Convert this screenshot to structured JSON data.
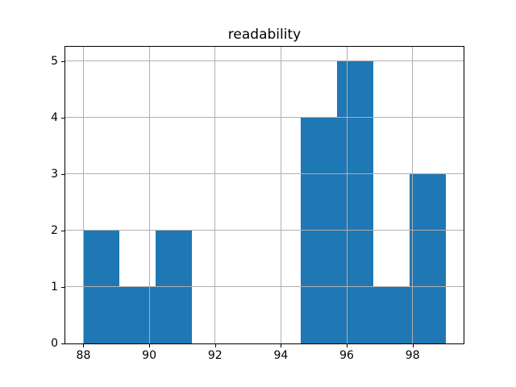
{
  "chart_data": {
    "type": "bar",
    "subtype": "histogram",
    "title": "readability",
    "bin_edges": [
      88.0,
      89.1,
      90.2,
      91.3,
      92.4,
      93.5,
      94.6,
      95.7,
      96.8,
      97.9,
      99.0
    ],
    "counts": [
      2,
      1,
      2,
      0,
      0,
      0,
      4,
      5,
      1,
      3
    ],
    "xticks": [
      "88",
      "90",
      "92",
      "94",
      "96",
      "98"
    ],
    "xtick_values": [
      88,
      90,
      92,
      94,
      96,
      98
    ],
    "yticks": [
      "0",
      "1",
      "2",
      "3",
      "4",
      "5"
    ],
    "ytick_values": [
      0,
      1,
      2,
      3,
      4,
      5
    ],
    "xlim": [
      87.45,
      99.55
    ],
    "ylim": [
      0,
      5.25
    ],
    "xlabel": "",
    "ylabel": "",
    "grid": true,
    "legend": false,
    "colors": {
      "bar": "#1f77b4",
      "grid": "#b0b0b0",
      "spine": "#000000",
      "text": "#000000",
      "background": "#ffffff"
    }
  }
}
